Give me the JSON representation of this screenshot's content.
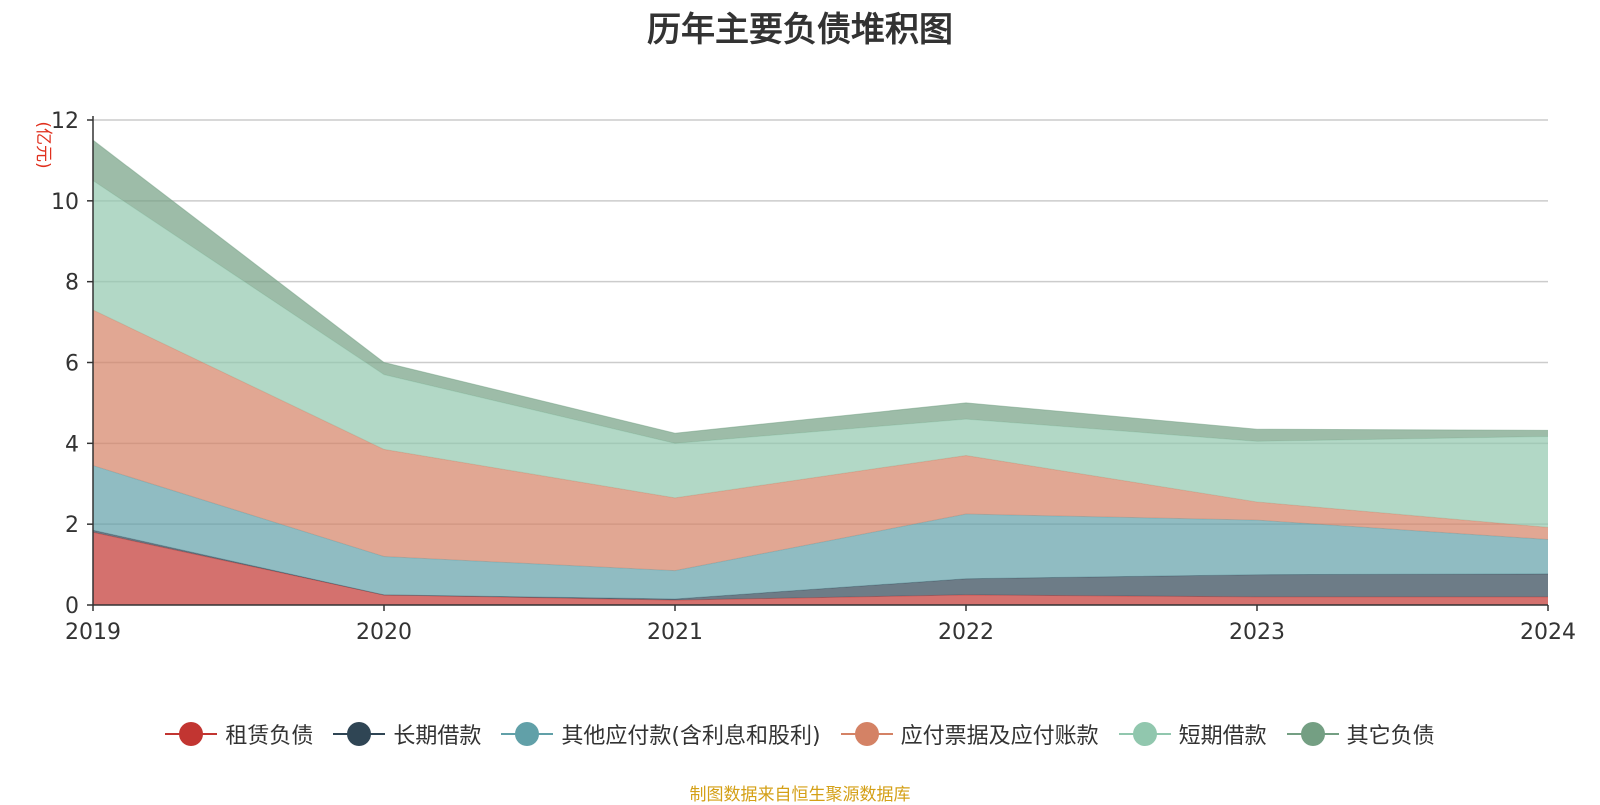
{
  "chart_data": {
    "type": "area",
    "stacked": true,
    "title": "历年主要负债堆积图",
    "ylabel": "(亿元)",
    "ylim": [
      0,
      12
    ],
    "yticks": [
      0,
      2,
      4,
      6,
      8,
      10,
      12
    ],
    "x": [
      "2019",
      "2020",
      "2021",
      "2022",
      "2023",
      "2024"
    ],
    "grid": true,
    "legend_position": "bottom",
    "series": [
      {
        "name": "租赁负债",
        "color": "#c23531",
        "values": [
          1.8,
          0.25,
          0.12,
          0.25,
          0.2,
          0.2
        ]
      },
      {
        "name": "长期借款",
        "color": "#2f4554",
        "values": [
          0.05,
          0.0,
          0.03,
          0.4,
          0.55,
          0.57
        ]
      },
      {
        "name": "其他应付款(含利息和股利)",
        "color": "#61a0a8",
        "values": [
          1.6,
          0.95,
          0.7,
          1.6,
          1.35,
          0.85
        ]
      },
      {
        "name": "应付票据及应付账款",
        "color": "#d48265",
        "values": [
          3.85,
          2.65,
          1.8,
          1.45,
          0.45,
          0.3
        ]
      },
      {
        "name": "短期借款",
        "color": "#91c7ae",
        "values": [
          3.2,
          1.85,
          1.35,
          0.9,
          1.5,
          2.25
        ]
      },
      {
        "name": "其它负债",
        "color": "#749f83",
        "values": [
          1.0,
          0.3,
          0.25,
          0.4,
          0.3,
          0.15
        ]
      }
    ]
  },
  "source_note": "制图数据来自恒生聚源数据库"
}
